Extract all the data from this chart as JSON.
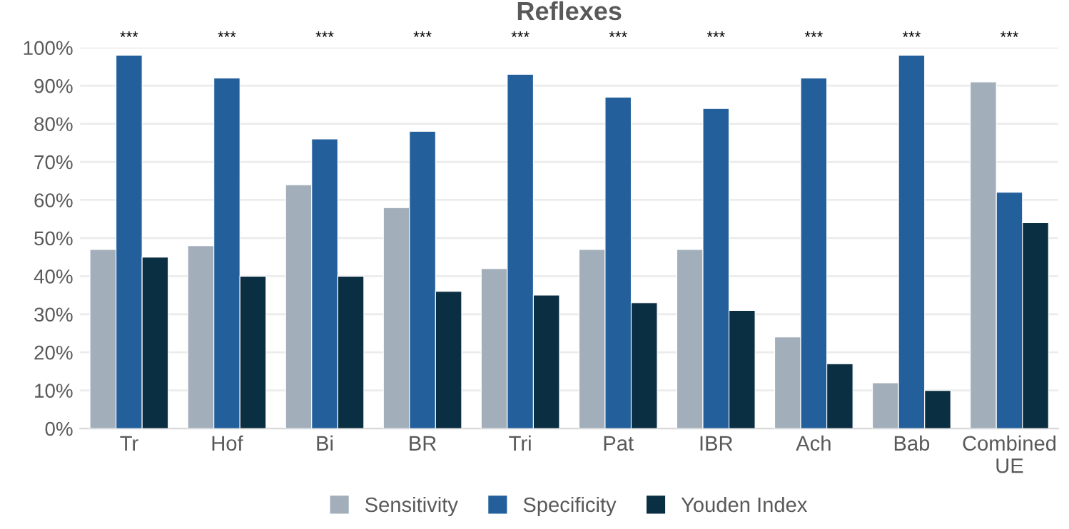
{
  "chart_data": {
    "type": "bar",
    "title": "Reflexes",
    "categories": [
      "Tr",
      "Hof",
      "Bi",
      "BR",
      "Tri",
      "Pat",
      "IBR",
      "Ach",
      "Bab",
      "Combined\nUE"
    ],
    "series": [
      {
        "name": "Sensitivity",
        "color": "#a2afbb",
        "values": [
          47,
          48,
          64,
          58,
          42,
          47,
          47,
          24,
          12,
          91
        ]
      },
      {
        "name": "Specificity",
        "color": "#225f9b",
        "values": [
          98,
          92,
          76,
          78,
          93,
          87,
          84,
          92,
          98,
          62
        ]
      },
      {
        "name": "Youden Index",
        "color": "#0b2f42",
        "values": [
          45,
          40,
          40,
          36,
          35,
          33,
          31,
          17,
          10,
          54
        ]
      }
    ],
    "ylim": [
      0,
      100
    ],
    "yticks": [
      {
        "value": 0,
        "label": "0%"
      },
      {
        "value": 10,
        "label": "10%"
      },
      {
        "value": 20,
        "label": "20%"
      },
      {
        "value": 30,
        "label": "30%"
      },
      {
        "value": 40,
        "label": "40%"
      },
      {
        "value": 50,
        "label": "50%"
      },
      {
        "value": 60,
        "label": "60%"
      },
      {
        "value": 70,
        "label": "70%"
      },
      {
        "value": 80,
        "label": "80%"
      },
      {
        "value": 90,
        "label": "90%"
      },
      {
        "value": 100,
        "label": "100%"
      }
    ],
    "grid": "y",
    "legend": "bottom",
    "annotations": [
      "***",
      "***",
      "***",
      "***",
      "***",
      "***",
      "***",
      "***",
      "***",
      "***"
    ]
  }
}
